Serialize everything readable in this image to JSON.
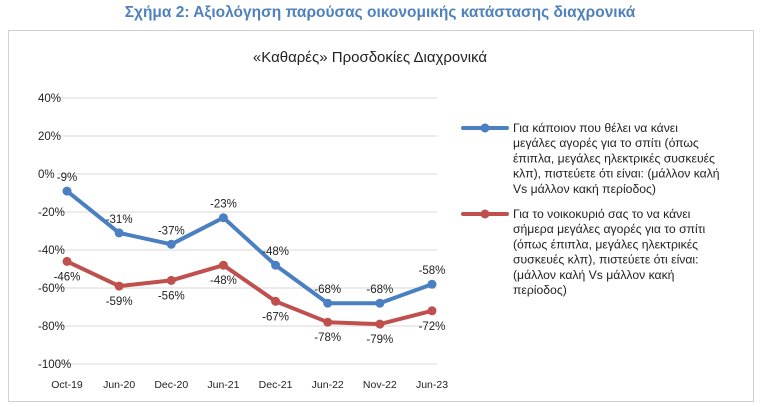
{
  "figure_title": "Σχήμα 2: Αξιολόγηση παρούσας οικονομικής κατάστασης διαχρονικά",
  "colors": {
    "series1": "#4a7fc1",
    "series2": "#c0504d",
    "grid": "#d9d9d9",
    "title": "#4f81bd"
  },
  "chart_data": {
    "type": "line",
    "title": "«Καθαρές» Προσδοκίες Διαχρονικά",
    "categories": [
      "Oct-19",
      "Jun-20",
      "Dec-20",
      "Jun-21",
      "Dec-21",
      "Jun-22",
      "Nov-22",
      "Jun-23"
    ],
    "ylim": [
      -100,
      40
    ],
    "yticks": [
      40,
      20,
      0,
      -20,
      -40,
      -60,
      -80,
      -100
    ],
    "ytick_labels": [
      "40%",
      "20%",
      "0%",
      "-20%",
      "-40%",
      "-60%",
      "-80%",
      "-100%"
    ],
    "grid": "horizontal",
    "legend_position": "right",
    "series": [
      {
        "name_lines": [
          "Για κάποιον που θέλει να κάνει",
          "μεγάλες αγορές για το σπίτι (όπως",
          "έπιπλα, μεγάλες ηλεκτρικές συσκευές",
          "κλπ), πιστεύετε ότι είναι: (μάλλον καλή",
          "Vs μάλλον κακή περίοδος)"
        ],
        "values": [
          -9,
          -31,
          -37,
          -23,
          -48,
          -68,
          -68,
          -58
        ],
        "labels": [
          "-9%",
          "-31%",
          "-37%",
          "-23%",
          "-48%",
          "-68%",
          "-68%",
          "-58%"
        ]
      },
      {
        "name_lines": [
          "Για το νοικοκυριό σας το να κάνει",
          "σήμερα μεγάλες αγορές για το σπίτι",
          "(όπως έπιπλα, μεγάλες ηλεκτρικές",
          "συσκευές κλπ), πιστεύετε ότι είναι:",
          "(μάλλον καλή Vs μάλλον κακή",
          "περίοδος)"
        ],
        "values": [
          -46,
          -59,
          -56,
          -48,
          -67,
          -78,
          -79,
          -72
        ],
        "labels": [
          "-46%",
          "-59%",
          "-56%",
          "-48%",
          "-67%",
          "-78%",
          "-79%",
          "-72%"
        ]
      }
    ]
  }
}
